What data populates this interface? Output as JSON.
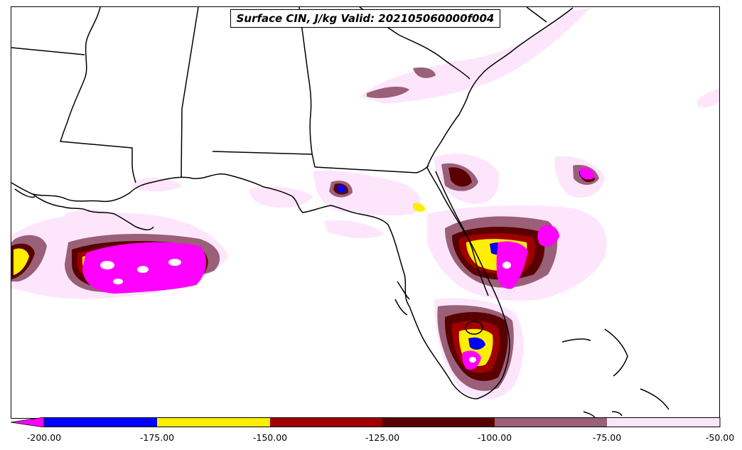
{
  "title": "Surface CIN, J/kg Valid: 202105060000f004",
  "colorbar": {
    "ticks": [
      "-200.00",
      "-175.00",
      "-150.00",
      "-125.00",
      "-100.00",
      "-75.00",
      "-50.00"
    ],
    "colors": [
      "#ff00ff",
      "#0000ff",
      "#ffee00",
      "#a00000",
      "#5a0000",
      "#9a6078",
      "#fde6fb"
    ],
    "range": [
      -200,
      -50
    ],
    "extend": "min"
  },
  "map": {
    "region": "Southeastern United States / Gulf of Mexico",
    "line_color": "#000000",
    "background": "#ffffff"
  }
}
